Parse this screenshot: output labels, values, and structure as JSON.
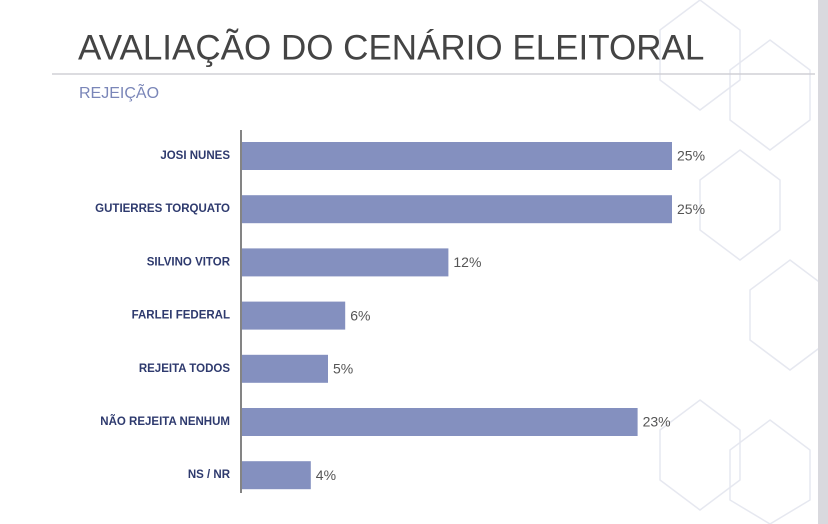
{
  "chart_data": {
    "type": "bar",
    "orientation": "horizontal",
    "title": "AVALIAÇÃO DO CENÁRIO ELEITORAL",
    "subtitle": "REJEIÇÃO",
    "categories": [
      "JOSI NUNES",
      "GUTIERRES TORQUATO",
      "SILVINO VITOR",
      "FARLEI FEDERAL",
      "REJEITA TODOS",
      "NÃO REJEITA NENHUM",
      "NS / NR"
    ],
    "values": [
      25,
      25,
      12,
      6,
      5,
      23,
      4
    ],
    "value_labels": [
      "25%",
      "25%",
      "12%",
      "6%",
      "5%",
      "23%",
      "4%"
    ],
    "color": "#8490bf"
  }
}
